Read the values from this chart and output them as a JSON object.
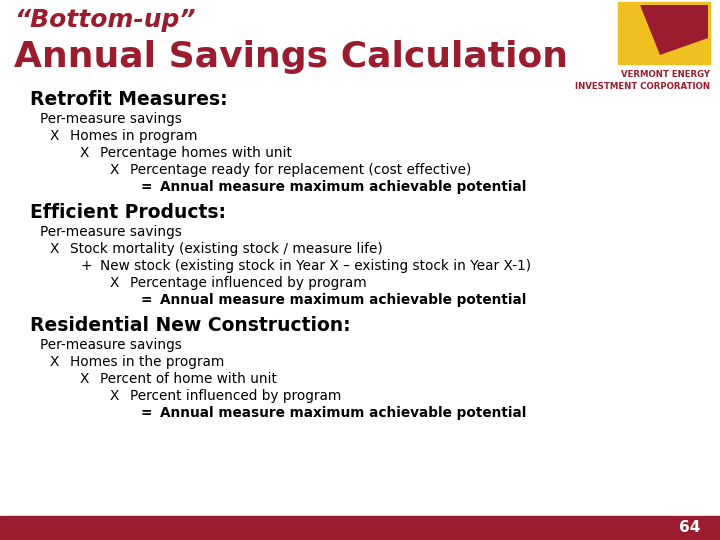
{
  "title_line1": "“Bottom-up”",
  "title_line2": "Annual Savings Calculation",
  "title_color": "#9b1c2e",
  "bg_color": "#ffffff",
  "footer_color": "#9b1c2e",
  "page_number": "64",
  "sections": [
    {
      "heading": "Retrofit Measures:",
      "lines": [
        {
          "indent": 0,
          "prefix": "",
          "text": "Per-measure savings",
          "bold": false
        },
        {
          "indent": 1,
          "prefix": "X",
          "text": "Homes in program",
          "bold": false
        },
        {
          "indent": 2,
          "prefix": "X",
          "text": "Percentage homes with unit",
          "bold": false
        },
        {
          "indent": 3,
          "prefix": "X",
          "text": "Percentage ready for replacement (cost effective)",
          "bold": false
        },
        {
          "indent": 4,
          "prefix": "=",
          "text": "Annual measure maximum achievable potential",
          "bold": true
        }
      ]
    },
    {
      "heading": "Efficient Products:",
      "lines": [
        {
          "indent": 0,
          "prefix": "",
          "text": "Per-measure savings",
          "bold": false
        },
        {
          "indent": 1,
          "prefix": "X",
          "text": "Stock mortality (existing stock / measure life)",
          "bold": false
        },
        {
          "indent": 2,
          "prefix": "+",
          "text": "New stock (existing stock in Year X – existing stock in Year X-1)",
          "bold": false
        },
        {
          "indent": 3,
          "prefix": "X",
          "text": "Percentage influenced by program",
          "bold": false
        },
        {
          "indent": 4,
          "prefix": "=",
          "text": "Annual measure maximum achievable potential",
          "bold": true
        }
      ]
    },
    {
      "heading": "Residential New Construction:",
      "lines": [
        {
          "indent": 0,
          "prefix": "",
          "text": "Per-measure savings",
          "bold": false
        },
        {
          "indent": 1,
          "prefix": "X",
          "text": "Homes in the program",
          "bold": false
        },
        {
          "indent": 2,
          "prefix": "X",
          "text": "Percent of home with unit",
          "bold": false
        },
        {
          "indent": 3,
          "prefix": "X",
          "text": "Percent influenced by program",
          "bold": false
        },
        {
          "indent": 4,
          "prefix": "=",
          "text": "Annual measure maximum achievable potential",
          "bold": true
        }
      ]
    }
  ]
}
